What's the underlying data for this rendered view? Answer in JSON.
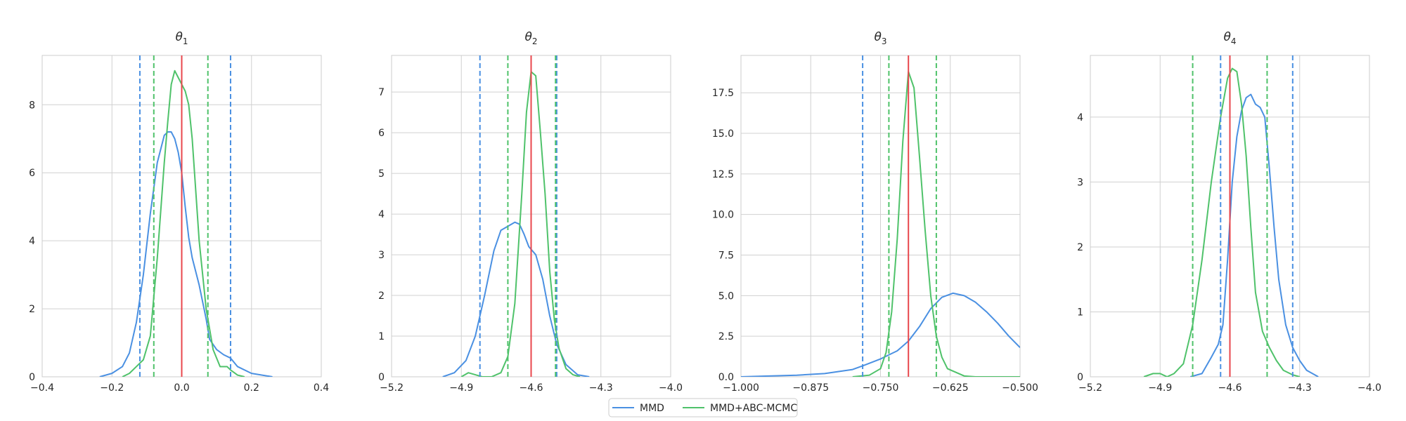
{
  "colors": {
    "mmd": "#4a90e2",
    "abc": "#4fc26a",
    "truth": "#e8474d",
    "grid": "#d0d0d0",
    "frame": "#cccccc"
  },
  "legend": {
    "entries": [
      {
        "name": "MMD",
        "color": "#4a90e2"
      },
      {
        "name": "MMD+ABC-MCMC",
        "color": "#4fc26a"
      }
    ],
    "placement": "bottom-center"
  },
  "chart_data": [
    {
      "type": "line",
      "title": "θ",
      "title_sub": "1",
      "xlim": [
        -0.4,
        0.4
      ],
      "ylim": [
        0,
        9.45
      ],
      "xticks": [
        -0.4,
        -0.2,
        0.0,
        0.2,
        0.4
      ],
      "xtick_labels": [
        "−0.4",
        "−0.2",
        "0.0",
        "0.2",
        "0.4"
      ],
      "yticks": [
        0,
        2,
        4,
        6,
        8
      ],
      "ytick_labels": [
        "0",
        "2",
        "4",
        "6",
        "8"
      ],
      "grid": true,
      "truth": 0.0,
      "series": [
        {
          "name": "MMD",
          "x": [
            -0.235,
            -0.2,
            -0.17,
            -0.15,
            -0.13,
            -0.11,
            -0.09,
            -0.07,
            -0.05,
            -0.04,
            -0.03,
            -0.02,
            -0.01,
            0.0,
            0.01,
            0.02,
            0.03,
            0.05,
            0.07,
            0.08,
            0.1,
            0.12,
            0.14,
            0.16,
            0.2,
            0.26
          ],
          "y": [
            0.0,
            0.1,
            0.3,
            0.7,
            1.6,
            3.0,
            4.8,
            6.3,
            7.1,
            7.2,
            7.2,
            7.0,
            6.6,
            6.0,
            5.0,
            4.1,
            3.5,
            2.7,
            1.7,
            1.1,
            0.8,
            0.65,
            0.55,
            0.3,
            0.1,
            0.0
          ]
        },
        {
          "name": "MMD+ABC-MCMC",
          "x": [
            -0.17,
            -0.15,
            -0.13,
            -0.11,
            -0.09,
            -0.07,
            -0.05,
            -0.04,
            -0.03,
            -0.02,
            -0.01,
            0.0,
            0.01,
            0.02,
            0.03,
            0.04,
            0.05,
            0.07,
            0.09,
            0.11,
            0.13,
            0.14,
            0.16,
            0.18
          ],
          "y": [
            0.0,
            0.1,
            0.3,
            0.5,
            1.2,
            3.5,
            6.3,
            7.5,
            8.6,
            9.0,
            8.8,
            8.6,
            8.4,
            8.0,
            7.0,
            5.5,
            4.0,
            2.0,
            0.8,
            0.3,
            0.3,
            0.2,
            0.05,
            0.0
          ]
        }
      ],
      "intervals": [
        {
          "series": "MMD",
          "lower": -0.12,
          "upper": 0.14
        },
        {
          "series": "MMD+ABC-MCMC",
          "lower": -0.08,
          "upper": 0.075
        }
      ]
    },
    {
      "type": "line",
      "title": "θ",
      "title_sub": "2",
      "xlim": [
        -5.2,
        -4.0
      ],
      "ylim": [
        0,
        7.9
      ],
      "xticks": [
        -5.2,
        -4.9,
        -4.6,
        -4.3,
        -4.0
      ],
      "xtick_labels": [
        "−5.2",
        "−4.9",
        "−4.6",
        "−4.3",
        "−4.0"
      ],
      "yticks": [
        0,
        1,
        2,
        3,
        4,
        5,
        6,
        7
      ],
      "ytick_labels": [
        "0",
        "1",
        "2",
        "3",
        "4",
        "5",
        "6",
        "7"
      ],
      "grid": true,
      "truth": -4.6,
      "series": [
        {
          "name": "MMD",
          "x": [
            -4.98,
            -4.93,
            -4.88,
            -4.84,
            -4.8,
            -4.76,
            -4.73,
            -4.7,
            -4.67,
            -4.65,
            -4.63,
            -4.61,
            -4.58,
            -4.55,
            -4.52,
            -4.49,
            -4.45,
            -4.4,
            -4.35
          ],
          "y": [
            0.0,
            0.1,
            0.4,
            1.0,
            2.0,
            3.1,
            3.6,
            3.7,
            3.8,
            3.75,
            3.5,
            3.2,
            3.0,
            2.4,
            1.5,
            0.8,
            0.3,
            0.05,
            0.0
          ]
        },
        {
          "name": "MMD+ABC-MCMC",
          "x": [
            -4.9,
            -4.87,
            -4.84,
            -4.81,
            -4.77,
            -4.73,
            -4.7,
            -4.67,
            -4.64,
            -4.62,
            -4.6,
            -4.58,
            -4.56,
            -4.54,
            -4.52,
            -4.5,
            -4.48,
            -4.45,
            -4.42,
            -4.39
          ],
          "y": [
            0.0,
            0.1,
            0.05,
            0.0,
            0.0,
            0.1,
            0.5,
            1.8,
            4.5,
            6.5,
            7.5,
            7.4,
            6.0,
            4.5,
            2.6,
            1.4,
            0.7,
            0.2,
            0.05,
            0.0
          ]
        }
      ],
      "intervals": [
        {
          "series": "MMD",
          "lower": -4.82,
          "upper": -4.49
        },
        {
          "series": "MMD+ABC-MCMC",
          "lower": -4.7,
          "upper": -4.495
        }
      ]
    },
    {
      "type": "line",
      "title": "θ",
      "title_sub": "3",
      "xlim": [
        -1.0,
        -0.5
      ],
      "ylim": [
        0,
        19.8
      ],
      "xticks": [
        -1.0,
        -0.875,
        -0.75,
        -0.625,
        -0.5
      ],
      "xtick_labels": [
        "−1.000",
        "−0.875",
        "−0.750",
        "−0.625",
        "−0.500"
      ],
      "yticks": [
        0,
        2.5,
        5,
        7.5,
        10,
        12.5,
        15,
        17.5
      ],
      "ytick_labels": [
        "0.0",
        "2.5",
        "5.0",
        "7.5",
        "10.0",
        "12.5",
        "15.0",
        "17.5"
      ],
      "grid": true,
      "truth": -0.7,
      "series": [
        {
          "name": "MMD",
          "x": [
            -1.0,
            -0.95,
            -0.9,
            -0.85,
            -0.8,
            -0.78,
            -0.75,
            -0.72,
            -0.7,
            -0.68,
            -0.66,
            -0.64,
            -0.62,
            -0.6,
            -0.58,
            -0.56,
            -0.54,
            -0.52,
            -0.5
          ],
          "y": [
            0.0,
            0.05,
            0.1,
            0.2,
            0.45,
            0.7,
            1.1,
            1.6,
            2.2,
            3.1,
            4.2,
            4.9,
            5.15,
            5.0,
            4.6,
            4.0,
            3.3,
            2.5,
            1.8
          ]
        },
        {
          "name": "MMD+ABC-MCMC",
          "x": [
            -0.8,
            -0.77,
            -0.75,
            -0.74,
            -0.73,
            -0.72,
            -0.71,
            -0.7,
            -0.69,
            -0.68,
            -0.67,
            -0.66,
            -0.65,
            -0.64,
            -0.63,
            -0.6,
            -0.58,
            -0.5
          ],
          "y": [
            0.0,
            0.1,
            0.5,
            1.5,
            4.0,
            8.5,
            14.5,
            18.8,
            17.8,
            13.5,
            9.0,
            5.0,
            2.5,
            1.2,
            0.5,
            0.05,
            0.0,
            0.0
          ]
        }
      ],
      "intervals": [
        {
          "series": "MMD",
          "lower": -0.782,
          "upper": null
        },
        {
          "series": "MMD+ABC-MCMC",
          "lower": -0.735,
          "upper": -0.65
        }
      ]
    },
    {
      "type": "line",
      "title": "θ",
      "title_sub": "4",
      "xlim": [
        -5.2,
        -4.0
      ],
      "ylim": [
        0,
        4.95
      ],
      "xticks": [
        -5.2,
        -4.9,
        -4.6,
        -4.3,
        -4.0
      ],
      "xtick_labels": [
        "−5.2",
        "−4.9",
        "−4.6",
        "−4.3",
        "−4.0"
      ],
      "yticks": [
        0,
        1,
        2,
        3,
        4
      ],
      "ytick_labels": [
        "0",
        "1",
        "2",
        "3",
        "4"
      ],
      "grid": true,
      "truth": -4.6,
      "series": [
        {
          "name": "MMD",
          "x": [
            -4.77,
            -4.72,
            -4.68,
            -4.65,
            -4.63,
            -4.61,
            -4.59,
            -4.57,
            -4.55,
            -4.53,
            -4.51,
            -4.49,
            -4.47,
            -4.45,
            -4.43,
            -4.41,
            -4.39,
            -4.36,
            -4.33,
            -4.3,
            -4.27,
            -4.22
          ],
          "y": [
            0.0,
            0.05,
            0.3,
            0.5,
            0.8,
            1.8,
            3.0,
            3.7,
            4.1,
            4.3,
            4.35,
            4.2,
            4.15,
            4.0,
            3.2,
            2.3,
            1.5,
            0.8,
            0.45,
            0.25,
            0.1,
            0.0
          ]
        },
        {
          "name": "MMD+ABC-MCMC",
          "x": [
            -4.97,
            -4.93,
            -4.9,
            -4.87,
            -4.84,
            -4.8,
            -4.76,
            -4.72,
            -4.68,
            -4.64,
            -4.61,
            -4.59,
            -4.57,
            -4.55,
            -4.53,
            -4.51,
            -4.49,
            -4.46,
            -4.43,
            -4.4,
            -4.37,
            -4.33,
            -4.3
          ],
          "y": [
            0.0,
            0.05,
            0.05,
            0.0,
            0.05,
            0.2,
            0.8,
            1.8,
            3.0,
            4.0,
            4.6,
            4.75,
            4.7,
            4.2,
            3.4,
            2.3,
            1.3,
            0.7,
            0.45,
            0.25,
            0.1,
            0.03,
            0.0
          ]
        }
      ],
      "intervals": [
        {
          "series": "MMD",
          "lower": -4.64,
          "upper": -4.33
        },
        {
          "series": "MMD+ABC-MCMC",
          "lower": -4.76,
          "upper": -4.44
        }
      ]
    }
  ]
}
